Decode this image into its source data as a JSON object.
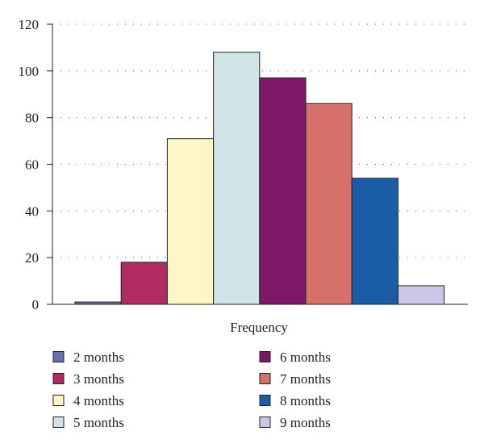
{
  "chart_data": {
    "type": "bar",
    "xlabel": "Frequency",
    "ylabel": "",
    "ylim": [
      0,
      120
    ],
    "yticks": [
      0,
      20,
      40,
      60,
      80,
      100,
      120
    ],
    "grid": true,
    "grid_style": "dotted",
    "legend_position": "bottom",
    "series": [
      {
        "name": "2 months",
        "value": 1,
        "color": "#6670b0"
      },
      {
        "name": "3 months",
        "value": 18,
        "color": "#b02b62"
      },
      {
        "name": "4 months",
        "value": 71,
        "color": "#fdf7c6"
      },
      {
        "name": "5 months",
        "value": 108,
        "color": "#d0e4e8"
      },
      {
        "name": "6 months",
        "value": 97,
        "color": "#7d1766"
      },
      {
        "name": "7 months",
        "value": 86,
        "color": "#d6706a"
      },
      {
        "name": "8 months",
        "value": 54,
        "color": "#1b5ca6"
      },
      {
        "name": "9 months",
        "value": 8,
        "color": "#c8c8e6"
      }
    ]
  }
}
